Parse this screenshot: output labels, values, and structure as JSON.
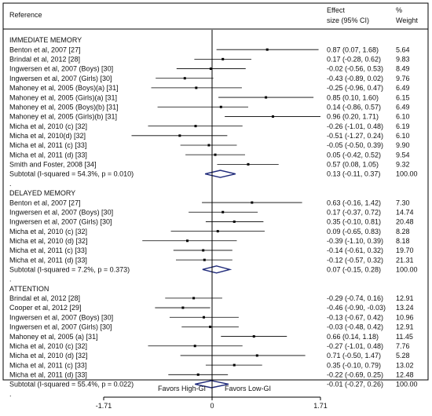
{
  "chart_data": {
    "type": "forest",
    "headers": {
      "reference": "Reference",
      "effect_line1": "Effect",
      "effect_line2": "size (95% CI)",
      "weight_line1": "%",
      "weight_line2": "Weight"
    },
    "xlim": [
      -1.71,
      1.71
    ],
    "x_ticks": [
      {
        "value": -1.71,
        "label": "-1.71"
      },
      {
        "value": 0,
        "label": "0"
      },
      {
        "value": 1.71,
        "label": "1.71"
      }
    ],
    "favors_left": "Favors High-GI",
    "favors_right": "Favors Low-GI",
    "rows": [
      {
        "kind": "group",
        "label": "IMMEDIATE MEMORY"
      },
      {
        "kind": "study",
        "label": "Benton et al, 2007 [27]",
        "es": 0.87,
        "lo": 0.07,
        "hi": 1.68,
        "effect_text": "0.87 (0.07, 1.68)",
        "weight": "5.64"
      },
      {
        "kind": "study",
        "label": "Brindal et al, 2012 [28]",
        "es": 0.17,
        "lo": -0.28,
        "hi": 0.62,
        "effect_text": "0.17 (-0.28, 0.62)",
        "weight": "9.83"
      },
      {
        "kind": "study",
        "label": "Ingwersen et al, 2007 (Boys) [30]",
        "es": -0.02,
        "lo": -0.56,
        "hi": 0.53,
        "effect_text": "-0.02 (-0.56, 0.53)",
        "weight": "8.49"
      },
      {
        "kind": "study",
        "label": "Ingwersen et al, 2007 (Girls) [30]",
        "es": -0.43,
        "lo": -0.89,
        "hi": 0.02,
        "effect_text": "-0.43 (-0.89, 0.02)",
        "weight": "9.76"
      },
      {
        "kind": "study",
        "label": "Mahoney et al, 2005 (Boys)(a) [31]",
        "es": -0.25,
        "lo": -0.96,
        "hi": 0.47,
        "effect_text": "-0.25 (-0.96, 0.47)",
        "weight": "6.49"
      },
      {
        "kind": "study",
        "label": "Mahoney et al, 2005 (Girls)(a) [31]",
        "es": 0.85,
        "lo": 0.1,
        "hi": 1.6,
        "effect_text": "0.85 (0.10, 1.60)",
        "weight": "6.15"
      },
      {
        "kind": "study",
        "label": "Mahoney et al, 2005 (Boys)(b) [31]",
        "es": 0.14,
        "lo": -0.86,
        "hi": 0.57,
        "effect_text": "0.14 (-0.86, 0.57)",
        "weight": "6.49"
      },
      {
        "kind": "study",
        "label": "Mahoney et al, 2005 (Girls)(b) [31]",
        "es": 0.96,
        "lo": 0.2,
        "hi": 1.71,
        "effect_text": "0.96 (0.20, 1.71)",
        "weight": "6.10"
      },
      {
        "kind": "study",
        "label": "Micha et al, 2010 (c) [32]",
        "es": -0.26,
        "lo": -1.01,
        "hi": 0.48,
        "effect_text": "-0.26 (-1.01, 0.48)",
        "weight": "6.19"
      },
      {
        "kind": "study",
        "label": "Micha et al, 2010(d) [32]",
        "es": -0.51,
        "lo": -1.27,
        "hi": 0.24,
        "effect_text": "-0.51 (-1.27, 0.24)",
        "weight": "6.10"
      },
      {
        "kind": "study",
        "label": "Micha et al, 2011 (c) [33]",
        "es": -0.05,
        "lo": -0.5,
        "hi": 0.39,
        "effect_text": "-0.05 (-0.50, 0.39)",
        "weight": "9.90"
      },
      {
        "kind": "study",
        "label": "Micha et al, 2011 (d) [33]",
        "es": 0.05,
        "lo": -0.42,
        "hi": 0.52,
        "effect_text": "0.05 (-0.42, 0.52)",
        "weight": "9.54"
      },
      {
        "kind": "study",
        "label": "Smith and Foster, 2008 [34]",
        "es": 0.57,
        "lo": 0.08,
        "hi": 1.05,
        "effect_text": "0.57 (0.08, 1.05)",
        "weight": "9.32"
      },
      {
        "kind": "subtotal",
        "label": "Subtotal  (I-squared = 54.3%, p = 0.010)",
        "es": 0.13,
        "lo": -0.11,
        "hi": 0.37,
        "effect_text": "0.13 (-0.11, 0.37)",
        "weight": "100.00"
      },
      {
        "kind": "dot",
        "label": "."
      },
      {
        "kind": "group",
        "label": "DELAYED MEMORY"
      },
      {
        "kind": "study",
        "label": "Benton et al, 2007 [27]",
        "es": 0.63,
        "lo": -0.16,
        "hi": 1.42,
        "effect_text": "0.63 (-0.16, 1.42)",
        "weight": "7.30"
      },
      {
        "kind": "study",
        "label": "Ingwersen et al, 2007 (Boys) [30]",
        "es": 0.17,
        "lo": -0.37,
        "hi": 0.72,
        "effect_text": "0.17 (-0.37, 0.72)",
        "weight": "14.74"
      },
      {
        "kind": "study",
        "label": "Ingwersen et al, 2007 (Girls) [30]",
        "es": 0.35,
        "lo": -0.1,
        "hi": 0.81,
        "effect_text": "0.35 (-0.10, 0.81)",
        "weight": "20.48"
      },
      {
        "kind": "study",
        "label": "Micha et al, 2010 (c) [32]",
        "es": 0.09,
        "lo": -0.65,
        "hi": 0.83,
        "effect_text": "0.09 (-0.65, 0.83)",
        "weight": "8.28"
      },
      {
        "kind": "study",
        "label": "Micha et al, 2010 (d) [32]",
        "es": -0.39,
        "lo": -1.1,
        "hi": 0.39,
        "effect_text": "-0.39 (-1.10, 0.39)",
        "weight": "8.18"
      },
      {
        "kind": "study",
        "label": "Micha et al, 2011 (c) [33]",
        "es": -0.14,
        "lo": -0.61,
        "hi": 0.32,
        "effect_text": "-0.14 (-0.61, 0.32)",
        "weight": "19.70"
      },
      {
        "kind": "study",
        "label": "Micha et al, 2011 (d) [33]",
        "es": -0.12,
        "lo": -0.57,
        "hi": 0.32,
        "effect_text": "-0.12 (-0.57, 0.32)",
        "weight": "21.31"
      },
      {
        "kind": "subtotal",
        "label": "Subtotal  (I-squared = 7.2%, p = 0.373)",
        "es": 0.07,
        "lo": -0.15,
        "hi": 0.28,
        "effect_text": "0.07 (-0.15, 0.28)",
        "weight": "100.00"
      },
      {
        "kind": "dot",
        "label": "."
      },
      {
        "kind": "group",
        "label": "ATTENTION"
      },
      {
        "kind": "study",
        "label": "Brindal et al, 2012 [28]",
        "es": -0.29,
        "lo": -0.74,
        "hi": 0.16,
        "effect_text": "-0.29 (-0.74, 0.16)",
        "weight": "12.91"
      },
      {
        "kind": "study",
        "label": "Cooper et al, 2012 [29]",
        "es": -0.46,
        "lo": -0.9,
        "hi": -0.03,
        "effect_text": "-0.46 (-0.90, -0.03)",
        "weight": "13.24"
      },
      {
        "kind": "study",
        "label": "Ingwersen et al, 2007 (Boys) [30]",
        "es": -0.13,
        "lo": -0.67,
        "hi": 0.42,
        "effect_text": "-0.13 (-0.67, 0.42)",
        "weight": "10.96"
      },
      {
        "kind": "study",
        "label": "Ingwersen et al, 2007 (Girls) [30]",
        "es": -0.03,
        "lo": -0.48,
        "hi": 0.42,
        "effect_text": "-0.03 (-0.48, 0.42)",
        "weight": "12.91"
      },
      {
        "kind": "study",
        "label": "Mahoney et al, 2005 (a) [31]",
        "es": 0.66,
        "lo": 0.14,
        "hi": 1.18,
        "effect_text": "0.66 (0.14, 1.18)",
        "weight": "11.45"
      },
      {
        "kind": "study",
        "label": "Micha et al, 2010 (c) [32]",
        "es": -0.27,
        "lo": -1.01,
        "hi": 0.48,
        "effect_text": "-0.27 (-1.01, 0.48)",
        "weight": "7.76"
      },
      {
        "kind": "study",
        "label": "Micha et al, 2010 (d) [32]",
        "es": 0.71,
        "lo": -0.5,
        "hi": 1.47,
        "effect_text": "0.71 (-0.50, 1.47)",
        "weight": "5.28"
      },
      {
        "kind": "study",
        "label": "Micha et al, 2011 (c) [33]",
        "es": 0.35,
        "lo": -0.1,
        "hi": 0.79,
        "effect_text": "0.35 (-0.10, 0.79)",
        "weight": "13.02"
      },
      {
        "kind": "study",
        "label": "Micha et al, 2011 (d) [33]",
        "es": -0.22,
        "lo": -0.69,
        "hi": 0.25,
        "effect_text": "-0.22 (-0.69, 0.25)",
        "weight": "12.48"
      },
      {
        "kind": "subtotal",
        "label": "Subtotal  (I-squared = 55.4%, p = 0.022)",
        "es": -0.01,
        "lo": -0.27,
        "hi": 0.26,
        "effect_text": "-0.01 (-0.27, 0.26)",
        "weight": "100.00"
      },
      {
        "kind": "dot",
        "label": "."
      }
    ],
    "colors": {
      "diamond": "#1f2a7a",
      "line": "#000000",
      "frame": "#000000"
    }
  }
}
